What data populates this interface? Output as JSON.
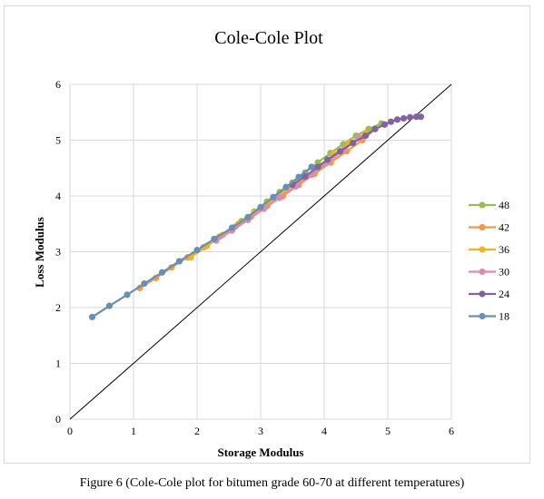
{
  "caption": "Figure 6 (Cole-Cole plot for bitumen grade 60-70 at different temperatures)",
  "chart_data": {
    "type": "scatter",
    "title": "Cole-Cole Plot",
    "xlabel": "Storage Modulus",
    "ylabel": "Loss Modulus",
    "xlim": [
      0,
      6
    ],
    "ylim": [
      0,
      6
    ],
    "xticks": [
      "0",
      "1",
      "2",
      "3",
      "4",
      "5",
      "6"
    ],
    "yticks": [
      "0",
      "1",
      "2",
      "3",
      "4",
      "5",
      "6"
    ],
    "grid": "vertical and horizontal major gridlines",
    "legend_position": "right",
    "reference_line": {
      "x": [
        0,
        6
      ],
      "y": [
        0,
        6
      ]
    },
    "series": [
      {
        "name": "48",
        "color": "#9bbb59",
        "x": [
          2.7,
          2.9,
          3.1,
          3.3,
          3.5,
          3.7,
          3.9,
          4.1,
          4.3,
          4.5,
          4.7,
          4.9
        ],
        "y": [
          3.55,
          3.72,
          3.9,
          4.07,
          4.24,
          4.42,
          4.6,
          4.77,
          4.93,
          5.08,
          5.2,
          5.3
        ]
      },
      {
        "name": "42",
        "color": "#f79646",
        "x": [
          1.1,
          1.35,
          1.6,
          1.85,
          2.1,
          2.35,
          2.6,
          2.85,
          3.1,
          3.35,
          3.6,
          3.85,
          4.1,
          4.35,
          4.6,
          4.8
        ],
        "y": [
          2.35,
          2.53,
          2.72,
          2.9,
          3.08,
          3.27,
          3.45,
          3.63,
          3.82,
          4.0,
          4.2,
          4.4,
          4.6,
          4.8,
          5.0,
          5.2
        ]
      },
      {
        "name": "36",
        "color": "#f0b323",
        "x": [
          1.9,
          2.15,
          2.4,
          2.65,
          2.9,
          3.15,
          3.4,
          3.65,
          3.9,
          4.15,
          4.4,
          4.65
        ],
        "y": [
          2.9,
          3.1,
          3.3,
          3.5,
          3.7,
          3.9,
          4.1,
          4.3,
          4.5,
          4.75,
          4.95,
          5.12
        ]
      },
      {
        "name": "30",
        "color": "#d98cb3",
        "x": [
          2.3,
          2.55,
          2.8,
          3.05,
          3.3,
          3.55,
          3.8,
          4.05,
          4.3,
          4.55
        ],
        "y": [
          3.2,
          3.38,
          3.57,
          3.77,
          3.97,
          4.17,
          4.38,
          4.6,
          4.82,
          5.05
        ]
      },
      {
        "name": "24",
        "color": "#8064a2",
        "x": [
          3.5,
          3.7,
          3.9,
          4.05,
          4.25,
          4.45,
          4.65,
          4.8,
          4.95,
          5.05,
          5.15,
          5.25,
          5.35,
          5.45,
          5.52
        ],
        "y": [
          4.2,
          4.35,
          4.52,
          4.65,
          4.8,
          4.95,
          5.08,
          5.2,
          5.28,
          5.33,
          5.37,
          5.39,
          5.41,
          5.42,
          5.42
        ]
      },
      {
        "name": "18",
        "color": "#6890b4",
        "x": [
          0.35,
          0.62,
          0.9,
          1.17,
          1.45,
          1.72,
          2.0,
          2.27,
          2.55,
          2.8,
          3.0,
          3.2,
          3.4,
          3.6,
          3.8
        ],
        "y": [
          1.83,
          2.03,
          2.23,
          2.43,
          2.63,
          2.83,
          3.03,
          3.23,
          3.43,
          3.62,
          3.8,
          3.98,
          4.16,
          4.34,
          4.52
        ]
      }
    ]
  }
}
